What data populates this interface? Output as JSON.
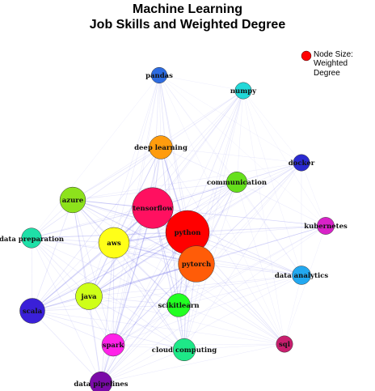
{
  "title": {
    "line1": "Machine Learning",
    "line2": "Job Skills and Weighted Degree"
  },
  "legend": {
    "line1": "Node Size:",
    "line2": "Weighted Degree",
    "marker_color": "#ff0000"
  },
  "edge_color": "#5a5ae6",
  "nodes": [
    {
      "id": "pandas",
      "label": "pandas",
      "color": "#2d6be0",
      "weight": 0.18
    },
    {
      "id": "numpy",
      "label": "numpy",
      "color": "#22d8d8",
      "weight": 0.2
    },
    {
      "id": "deep_learning",
      "label": "deep learning",
      "color": "#ff9c0e",
      "weight": 0.4
    },
    {
      "id": "docker",
      "label": "docker",
      "color": "#2a2ad0",
      "weight": 0.2
    },
    {
      "id": "communication",
      "label": "communication",
      "color": "#66e01c",
      "weight": 0.32
    },
    {
      "id": "azure",
      "label": "azure",
      "color": "#8de21c",
      "weight": 0.47
    },
    {
      "id": "tensorflow",
      "label": "tensorflow",
      "color": "#ff1060",
      "weight": 0.92
    },
    {
      "id": "kubernetes",
      "label": "kubernetes",
      "color": "#d822c8",
      "weight": 0.22
    },
    {
      "id": "data_preparation",
      "label": "data preparation",
      "color": "#1ee0a8",
      "weight": 0.3
    },
    {
      "id": "python",
      "label": "python",
      "color": "#ff0000",
      "weight": 1.0
    },
    {
      "id": "aws",
      "label": "aws",
      "color": "#ffff18",
      "weight": 0.62
    },
    {
      "id": "pytorch",
      "label": "pytorch",
      "color": "#ff5c08",
      "weight": 0.78
    },
    {
      "id": "data_analytics",
      "label": "data analytics",
      "color": "#22a8f0",
      "weight": 0.26
    },
    {
      "id": "java",
      "label": "java",
      "color": "#ceff18",
      "weight": 0.5
    },
    {
      "id": "scikitlearn",
      "label": "scikitlearn",
      "color": "#22ff22",
      "weight": 0.4
    },
    {
      "id": "scala",
      "label": "scala",
      "color": "#3a20d8",
      "weight": 0.45
    },
    {
      "id": "spark",
      "label": "spark",
      "color": "#ff22e8",
      "weight": 0.38
    },
    {
      "id": "cloud_computing",
      "label": "cloud computing",
      "color": "#1ee888",
      "weight": 0.37
    },
    {
      "id": "sql",
      "label": "sql",
      "color": "#c81e6e",
      "weight": 0.2
    },
    {
      "id": "data_pipelines",
      "label": "data pipelines",
      "color": "#7a0aa8",
      "weight": 0.37
    }
  ]
}
